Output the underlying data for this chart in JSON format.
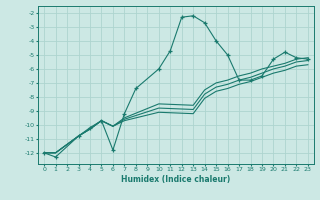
{
  "xlabel": "Humidex (Indice chaleur)",
  "ylabel": "",
  "background_color": "#cce8e4",
  "grid_color": "#aed4cf",
  "line_color": "#1a7a6e",
  "xlim": [
    -0.5,
    23.5
  ],
  "ylim": [
    -12.8,
    -1.5
  ],
  "yticks": [
    -2,
    -3,
    -4,
    -5,
    -6,
    -7,
    -8,
    -9,
    -10,
    -11,
    -12
  ],
  "xticks": [
    0,
    1,
    2,
    3,
    4,
    5,
    6,
    7,
    8,
    9,
    10,
    11,
    12,
    13,
    14,
    15,
    16,
    17,
    18,
    19,
    20,
    21,
    22,
    23
  ],
  "series": [
    {
      "x": [
        0,
        1,
        3,
        4,
        5,
        6,
        7,
        8,
        10,
        11,
        12,
        13,
        14,
        15,
        16,
        17,
        18,
        19,
        20,
        21,
        22,
        23
      ],
      "y": [
        -12,
        -12.3,
        -10.8,
        -10.2,
        -9.7,
        -11.8,
        -9.2,
        -7.4,
        -6.0,
        -4.7,
        -2.3,
        -2.2,
        -2.7,
        -4.0,
        -5.0,
        -6.8,
        -6.8,
        -6.5,
        -5.3,
        -4.8,
        -5.2,
        -5.3
      ],
      "marker": "+"
    },
    {
      "x": [
        0,
        1,
        3,
        4,
        5,
        6,
        7,
        10,
        13,
        14,
        15,
        16,
        17,
        18,
        19,
        20,
        21,
        22,
        23
      ],
      "y": [
        -12,
        -12.0,
        -10.8,
        -10.3,
        -9.7,
        -10.1,
        -9.5,
        -8.5,
        -8.6,
        -7.5,
        -7.0,
        -6.8,
        -6.5,
        -6.3,
        -6.0,
        -5.8,
        -5.6,
        -5.3,
        -5.2
      ],
      "marker": null
    },
    {
      "x": [
        0,
        1,
        3,
        4,
        5,
        6,
        7,
        10,
        13,
        14,
        15,
        16,
        17,
        18,
        19,
        20,
        21,
        22,
        23
      ],
      "y": [
        -12,
        -12.0,
        -10.8,
        -10.3,
        -9.7,
        -10.1,
        -9.6,
        -8.8,
        -8.9,
        -7.8,
        -7.3,
        -7.1,
        -6.8,
        -6.6,
        -6.3,
        -6.0,
        -5.8,
        -5.5,
        -5.4
      ],
      "marker": null
    },
    {
      "x": [
        0,
        1,
        3,
        4,
        5,
        6,
        7,
        10,
        13,
        14,
        15,
        16,
        17,
        18,
        19,
        20,
        21,
        22,
        23
      ],
      "y": [
        -12,
        -12.0,
        -10.8,
        -10.3,
        -9.7,
        -10.1,
        -9.7,
        -9.1,
        -9.2,
        -8.1,
        -7.6,
        -7.4,
        -7.1,
        -6.9,
        -6.6,
        -6.3,
        -6.1,
        -5.8,
        -5.7
      ],
      "marker": null
    }
  ]
}
